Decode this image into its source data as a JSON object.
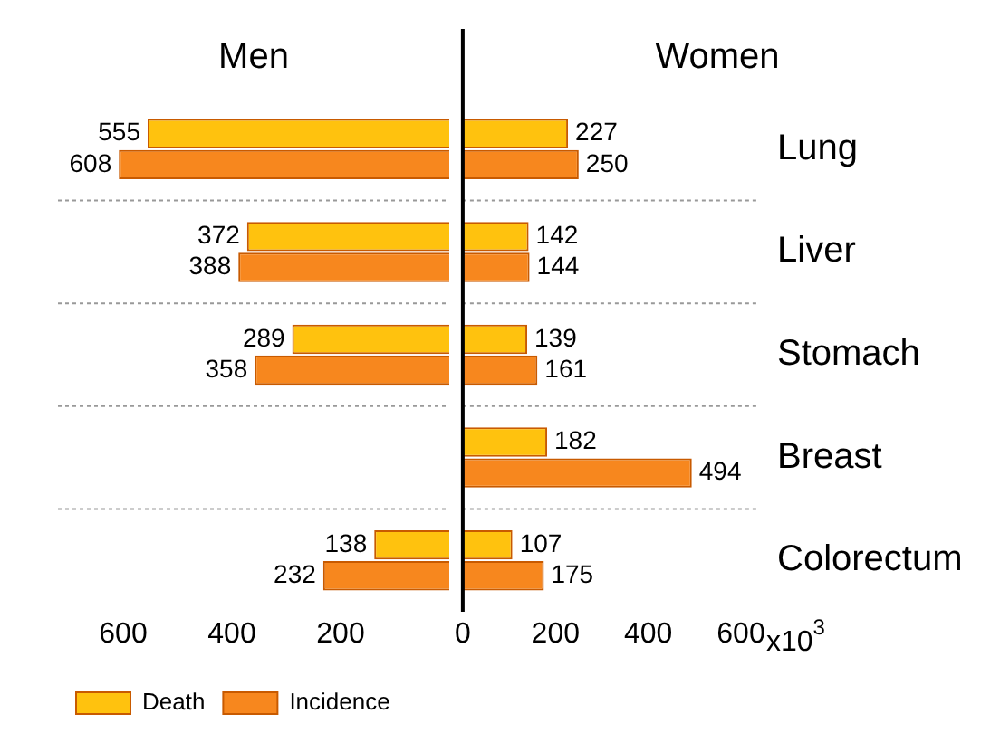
{
  "chart_data": [
    {
      "type": "bar",
      "orientation": "horizontal",
      "title": "Men",
      "categories": [
        "Lung",
        "Liver",
        "Stomach",
        "Breast",
        "Colorectum"
      ],
      "series": [
        {
          "name": "Death",
          "color": "#ffc20e",
          "values": [
            555,
            372,
            289,
            null,
            138
          ]
        },
        {
          "name": "Incidence",
          "color": "#f7871e",
          "values": [
            608,
            388,
            358,
            null,
            232
          ]
        }
      ],
      "xlim": [
        720,
        0
      ],
      "xticks": [
        600,
        400,
        200
      ],
      "tick_labels": "x",
      "data_labels": true,
      "grid": "y",
      "legend": "bottom left"
    },
    {
      "type": "bar",
      "orientation": "horizontal",
      "title": "Women",
      "categories": [
        "Lung",
        "Liver",
        "Stomach",
        "Breast",
        "Colorectum"
      ],
      "series": [
        {
          "color": "#ffc20e",
          "values": [
            227,
            142,
            139,
            182,
            107
          ]
        },
        {
          "color": "#f7871e",
          "values": [
            250,
            144,
            161,
            494,
            175
          ]
        }
      ],
      "xlim": [
        0,
        600
      ],
      "xticks": [
        0,
        200,
        400,
        600
      ],
      "xlabel": "x10$^{3}$",
      "data_labels": true,
      "grid": "y"
    }
  ]
}
